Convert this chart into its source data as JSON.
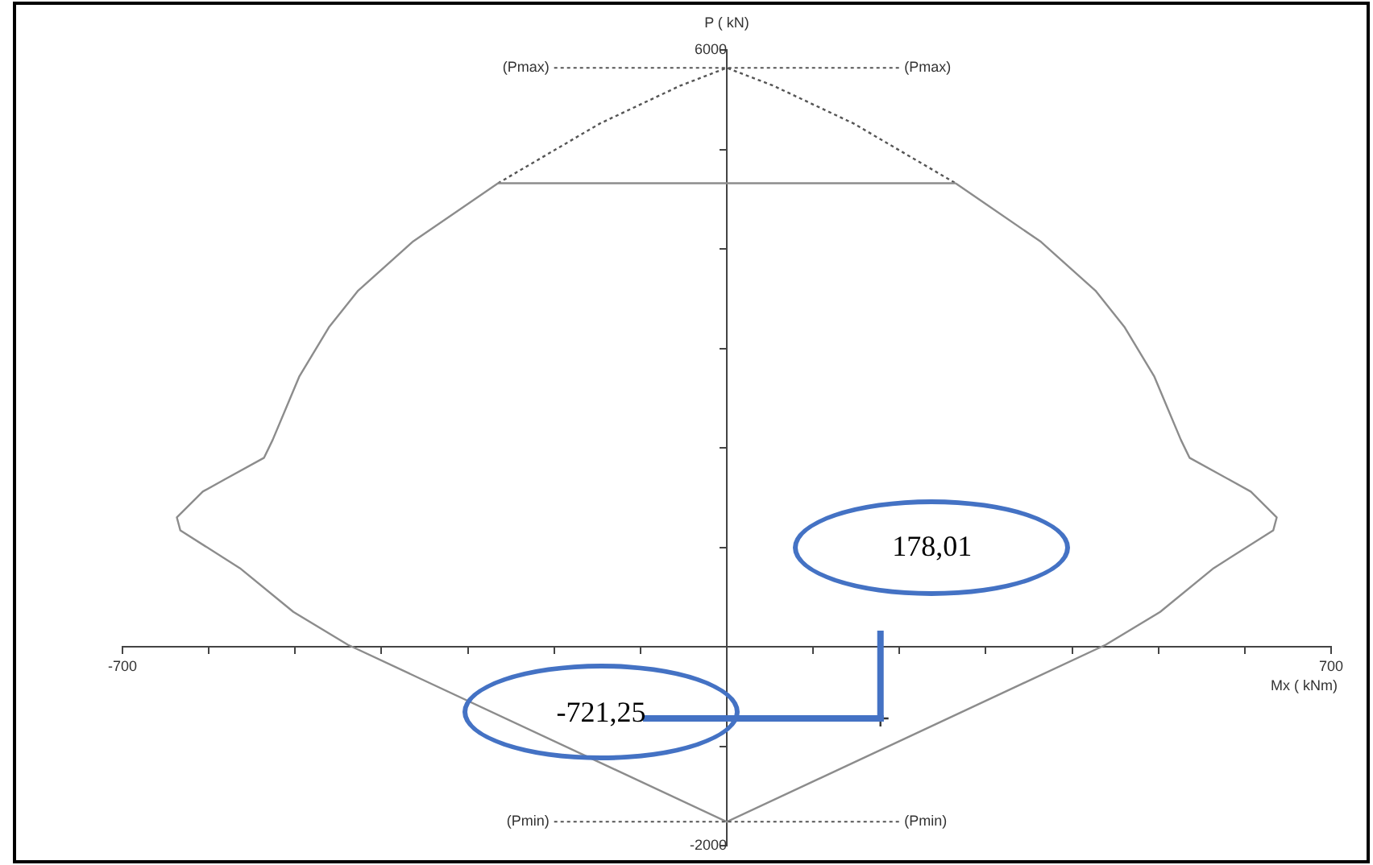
{
  "chart_data": {
    "type": "line",
    "xlabel": "Mx ( kNm)",
    "ylabel": "P ( kN)",
    "xlim": [
      -700,
      700
    ],
    "xticks": [
      -700,
      {
        "value": -600,
        "label": null
      },
      {
        "value": -500,
        "label": null
      },
      {
        "value": -400,
        "label": null
      },
      {
        "value": -300,
        "label": null
      },
      {
        "value": -200,
        "label": null
      },
      {
        "value": -100,
        "label": null
      },
      {
        "value": 0,
        "label": null
      },
      {
        "value": 100,
        "label": null
      },
      {
        "value": 200,
        "label": null
      },
      {
        "value": 300,
        "label": null
      },
      {
        "value": 400,
        "label": null
      },
      {
        "value": 500,
        "label": null
      },
      {
        "value": 600,
        "label": null
      },
      700
    ],
    "ylim": [
      -2000,
      6000
    ],
    "yticks": [
      -2000,
      {
        "value": -1000,
        "label": null
      },
      {
        "value": 0,
        "label": null
      },
      {
        "value": 1000,
        "label": null
      },
      {
        "value": 2000,
        "label": null
      },
      {
        "value": 3000,
        "label": null
      },
      {
        "value": 4000,
        "label": null
      },
      {
        "value": 5000,
        "label": null
      },
      6000
    ],
    "grid": false,
    "legend": false,
    "marker": "none",
    "series": [
      {
        "color": "#8c8c8c",
        "line_style": "solid",
        "x": [
          -265,
          -364,
          -427,
          -461,
          -495,
          -526,
          -536,
          -582,
          -607,
          -637,
          -633,
          -564,
          -502,
          -439,
          0,
          439,
          502,
          564,
          633,
          637,
          607,
          582,
          536,
          526,
          495,
          461,
          427,
          364,
          265
        ],
        "values": [
          4660,
          4070,
          3580,
          3210,
          2720,
          2080,
          1900,
          1680,
          1560,
          1300,
          1170,
          790,
          350,
          20,
          -1760,
          20,
          350,
          790,
          1170,
          1300,
          1560,
          1680,
          1900,
          2080,
          2720,
          3210,
          3580,
          4070,
          4660
        ]
      },
      {
        "color": "#8c8c8c",
        "line_style": "solid",
        "x": [
          -265,
          265
        ],
        "values": [
          4660,
          4660
        ]
      },
      {
        "color": "#555555",
        "line_style": "dotted",
        "x": [
          -265,
          -147,
          -54,
          0,
          54,
          147,
          265
        ],
        "values": [
          4660,
          5260,
          5640,
          5820,
          5640,
          5260,
          4660
        ]
      },
      {
        "type": "scatter",
        "marker": "cross",
        "color": "#333333",
        "x": [
          178.01
        ],
        "values": [
          -721.25
        ]
      }
    ],
    "ref_lines": [
      {
        "axis": "x",
        "value": 178.01,
        "label": "178,01",
        "color": "#4472c4",
        "line_style": "solid"
      },
      {
        "axis": "y",
        "value": -721.25,
        "label": "-721,25",
        "color": "#4472c4",
        "line_style": "solid"
      },
      {
        "axis": "y",
        "value": 5820,
        "label": "(Pmax)",
        "color": "#555555",
        "line_style": "dotted"
      },
      {
        "axis": "y",
        "value": -1760,
        "label": "(Pmin)",
        "color": "#555555",
        "line_style": "dotted"
      }
    ]
  }
}
